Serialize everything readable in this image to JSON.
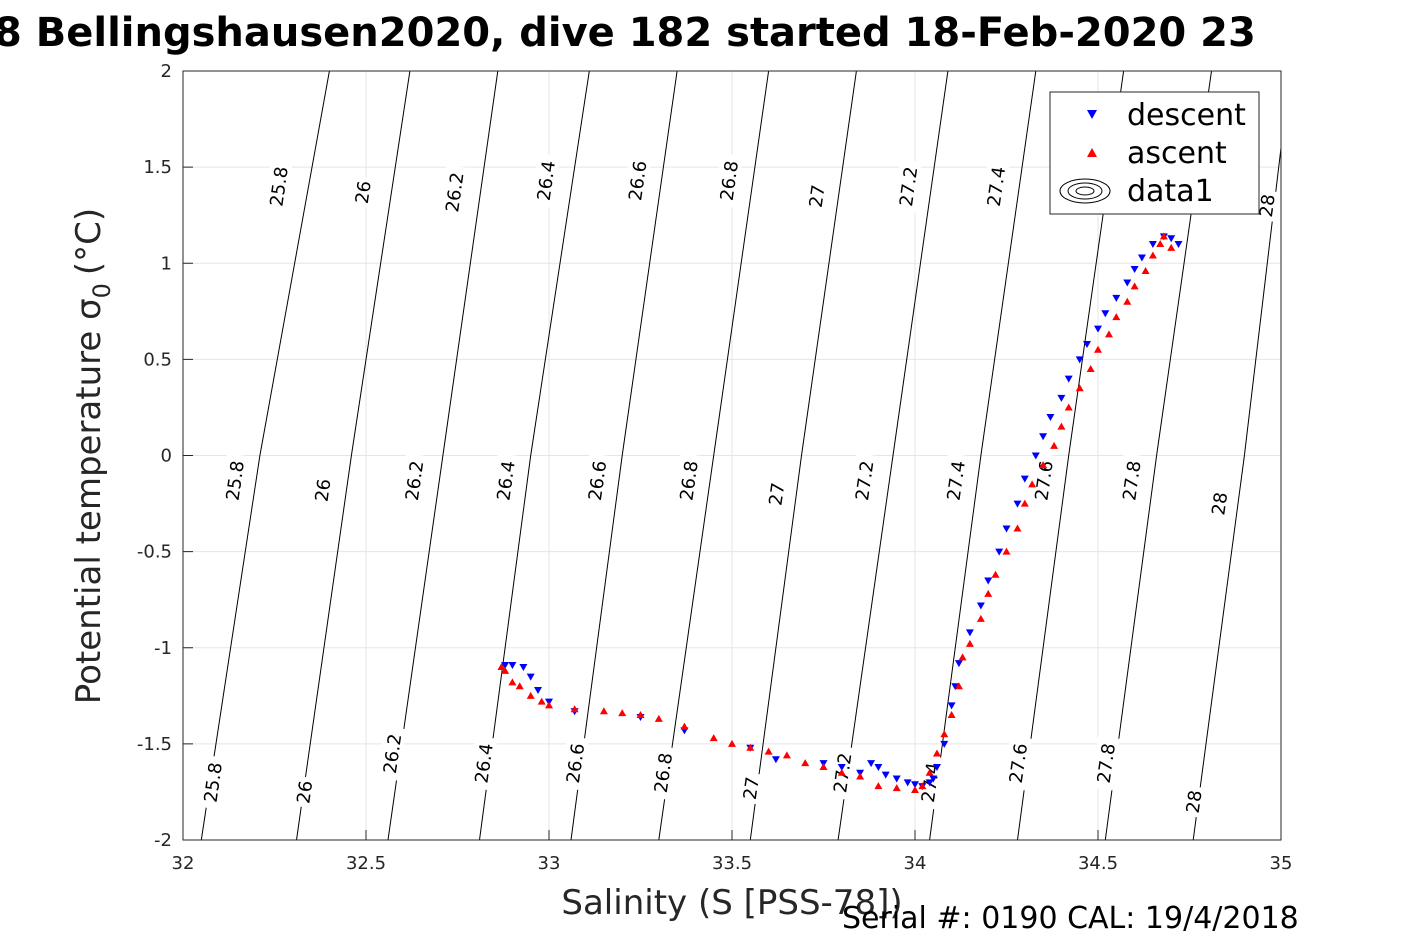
{
  "chart_data": {
    "type": "scatter",
    "title": "8 Bellingshausen2020, dive 182 started 18-Feb-2020 23",
    "xlabel": "Salinity (S [PSS-78])",
    "ylabel": "Potential temperature σ",
    "ylabel_subscript": "0",
    "ylabel_unit": "(°C)",
    "footer": "Serial #: 0190  CAL: 19/4/2018",
    "xlim": [
      32,
      35
    ],
    "ylim": [
      -2,
      2
    ],
    "xticks": [
      32,
      32.5,
      33,
      33.5,
      34,
      34.5,
      35
    ],
    "xtick_labels": [
      "32",
      "32.5",
      "33",
      "33.5",
      "34",
      "34.5",
      "35"
    ],
    "yticks": [
      -2,
      -1.5,
      -1,
      -0.5,
      0,
      0.5,
      1,
      1.5,
      2
    ],
    "ytick_labels": [
      "-2",
      "-1.5",
      "-1",
      "-0.5",
      "0",
      "0.5",
      "1",
      "1.5",
      "2"
    ],
    "grid": true,
    "legend_position": "top-right",
    "colors": {
      "descent": "#0000ff",
      "ascent": "#ff0000",
      "contour": "#000000",
      "grid": "#e5e5e5"
    },
    "contours": [
      {
        "label": "25.8",
        "points": [
          [
            32.05,
            -2
          ],
          [
            32.21,
            0
          ],
          [
            32.4,
            2
          ]
        ],
        "label_points": [
          [
            32.08,
            -1.7
          ],
          [
            32.14,
            -0.13
          ],
          [
            32.26,
            1.4
          ]
        ]
      },
      {
        "label": "26",
        "points": [
          [
            32.31,
            -2
          ],
          [
            32.46,
            0
          ],
          [
            32.62,
            2
          ]
        ],
        "label_points": [
          [
            32.33,
            -1.75
          ],
          [
            32.38,
            -0.18
          ],
          [
            32.49,
            1.37
          ]
        ]
      },
      {
        "label": "26.2",
        "points": [
          [
            32.56,
            -2
          ],
          [
            32.71,
            0
          ],
          [
            32.86,
            2
          ]
        ],
        "label_points": [
          [
            32.57,
            -1.55
          ],
          [
            32.63,
            -0.13
          ],
          [
            32.74,
            1.37
          ]
        ]
      },
      {
        "label": "26.4",
        "points": [
          [
            32.81,
            -2
          ],
          [
            32.95,
            0
          ],
          [
            33.11,
            2
          ]
        ],
        "label_points": [
          [
            32.82,
            -1.6
          ],
          [
            32.88,
            -0.13
          ],
          [
            32.99,
            1.43
          ]
        ]
      },
      {
        "label": "26.6",
        "points": [
          [
            33.06,
            -2
          ],
          [
            33.2,
            0
          ],
          [
            33.35,
            2
          ]
        ],
        "label_points": [
          [
            33.07,
            -1.6
          ],
          [
            33.13,
            -0.13
          ],
          [
            33.24,
            1.43
          ]
        ]
      },
      {
        "label": "26.8",
        "points": [
          [
            33.3,
            -2
          ],
          [
            33.45,
            0
          ],
          [
            33.6,
            2
          ]
        ],
        "label_points": [
          [
            33.31,
            -1.65
          ],
          [
            33.38,
            -0.13
          ],
          [
            33.49,
            1.43
          ]
        ]
      },
      {
        "label": "27",
        "points": [
          [
            33.55,
            -2
          ],
          [
            33.69,
            0
          ],
          [
            33.84,
            2
          ]
        ],
        "label_points": [
          [
            33.55,
            -1.73
          ],
          [
            33.62,
            -0.2
          ],
          [
            33.73,
            1.35
          ]
        ]
      },
      {
        "label": "27.2",
        "points": [
          [
            33.79,
            -2
          ],
          [
            33.94,
            0
          ],
          [
            34.09,
            2
          ]
        ],
        "label_points": [
          [
            33.8,
            -1.65
          ],
          [
            33.86,
            -0.13
          ],
          [
            33.98,
            1.4
          ]
        ]
      },
      {
        "label": "27.4",
        "points": [
          [
            34.04,
            -2
          ],
          [
            34.18,
            0
          ],
          [
            34.33,
            2
          ]
        ],
        "label_points": [
          [
            34.04,
            -1.7
          ],
          [
            34.11,
            -0.13
          ],
          [
            34.22,
            1.4
          ]
        ]
      },
      {
        "label": "27.6",
        "points": [
          [
            34.28,
            -2
          ],
          [
            34.42,
            0
          ],
          [
            34.57,
            2
          ]
        ],
        "label_points": [
          [
            34.28,
            -1.6
          ],
          [
            34.35,
            -0.13
          ],
          [
            34.46,
            1.4
          ]
        ]
      },
      {
        "label": "27.8",
        "points": [
          [
            34.52,
            -2
          ],
          [
            34.66,
            0
          ],
          [
            34.81,
            2
          ]
        ],
        "label_points": [
          [
            34.52,
            -1.6
          ],
          [
            34.59,
            -0.13
          ],
          [
            34.7,
            1.4
          ]
        ]
      },
      {
        "label": "28",
        "points": [
          [
            34.76,
            -2
          ],
          [
            34.9,
            0
          ],
          [
            35.0,
            1.6
          ]
        ],
        "label_points": [
          [
            34.76,
            -1.8
          ],
          [
            34.83,
            -0.25
          ],
          [
            34.96,
            1.3
          ]
        ]
      }
    ],
    "series": [
      {
        "name": "descent",
        "marker": "triangle-down",
        "x": [
          32.88,
          32.9,
          32.93,
          32.95,
          32.97,
          33.0,
          33.07,
          33.25,
          33.37,
          33.55,
          33.62,
          33.75,
          33.8,
          33.85,
          33.88,
          33.9,
          33.92,
          33.95,
          33.98,
          34.0,
          34.02,
          34.04,
          34.05,
          34.06,
          34.08,
          34.1,
          34.11,
          34.12,
          34.15,
          34.18,
          34.2,
          34.23,
          34.25,
          34.28,
          34.3,
          34.33,
          34.35,
          34.37,
          34.4,
          34.42,
          34.45,
          34.47,
          34.5,
          34.52,
          34.55,
          34.58,
          34.6,
          34.62,
          34.65,
          34.68,
          34.7,
          34.72
        ],
        "y": [
          -1.09,
          -1.09,
          -1.1,
          -1.15,
          -1.22,
          -1.28,
          -1.33,
          -1.36,
          -1.43,
          -1.52,
          -1.58,
          -1.6,
          -1.62,
          -1.65,
          -1.6,
          -1.62,
          -1.66,
          -1.68,
          -1.7,
          -1.71,
          -1.72,
          -1.7,
          -1.68,
          -1.62,
          -1.5,
          -1.3,
          -1.2,
          -1.08,
          -0.92,
          -0.78,
          -0.65,
          -0.5,
          -0.38,
          -0.25,
          -0.12,
          0.0,
          0.1,
          0.2,
          0.3,
          0.4,
          0.5,
          0.58,
          0.66,
          0.74,
          0.82,
          0.9,
          0.97,
          1.03,
          1.1,
          1.14,
          1.13,
          1.1
        ]
      },
      {
        "name": "ascent",
        "marker": "triangle-up",
        "x": [
          32.87,
          32.88,
          32.9,
          32.92,
          32.95,
          32.98,
          33.0,
          33.07,
          33.15,
          33.2,
          33.25,
          33.3,
          33.37,
          33.45,
          33.5,
          33.55,
          33.6,
          33.65,
          33.7,
          33.75,
          33.8,
          33.85,
          33.9,
          33.95,
          34.0,
          34.02,
          34.04,
          34.06,
          34.08,
          34.1,
          34.12,
          34.13,
          34.15,
          34.18,
          34.2,
          34.22,
          34.25,
          34.28,
          34.3,
          34.32,
          34.35,
          34.38,
          34.4,
          34.42,
          34.45,
          34.48,
          34.5,
          34.53,
          34.55,
          34.58,
          34.6,
          34.63,
          34.65,
          34.67,
          34.68,
          34.7
        ],
        "y": [
          -1.1,
          -1.12,
          -1.18,
          -1.2,
          -1.25,
          -1.28,
          -1.3,
          -1.32,
          -1.33,
          -1.34,
          -1.35,
          -1.37,
          -1.41,
          -1.47,
          -1.5,
          -1.52,
          -1.54,
          -1.56,
          -1.6,
          -1.62,
          -1.65,
          -1.67,
          -1.72,
          -1.73,
          -1.74,
          -1.72,
          -1.65,
          -1.55,
          -1.45,
          -1.35,
          -1.2,
          -1.05,
          -0.98,
          -0.85,
          -0.72,
          -0.62,
          -0.5,
          -0.38,
          -0.25,
          -0.15,
          -0.05,
          0.05,
          0.15,
          0.25,
          0.35,
          0.45,
          0.55,
          0.63,
          0.72,
          0.8,
          0.88,
          0.96,
          1.04,
          1.1,
          1.14,
          1.08
        ]
      }
    ],
    "legend": [
      {
        "label": "descent",
        "marker": "triangle-down"
      },
      {
        "label": "ascent",
        "marker": "triangle-up"
      },
      {
        "label": "data1",
        "marker": "contour"
      }
    ]
  }
}
